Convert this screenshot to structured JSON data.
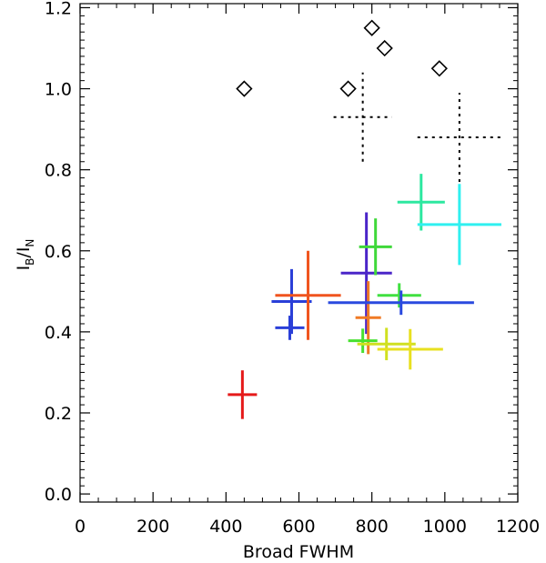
{
  "chart_data": {
    "type": "scatter",
    "xlabel": "Broad FWHM",
    "ylabel_main": "I",
    "ylabel_sub1": "B",
    "ylabel_slash": "/I",
    "ylabel_sub2": "N",
    "xlim": [
      0,
      1200
    ],
    "ylim": [
      -0.02,
      1.21
    ],
    "x_ticks": [
      0,
      200,
      400,
      600,
      800,
      1000,
      1200
    ],
    "x_tick_labels": [
      "0",
      "200",
      "400",
      "600",
      "800",
      "1000",
      "1200"
    ],
    "y_ticks": [
      0.0,
      0.2,
      0.4,
      0.6,
      0.8,
      1.0,
      1.2
    ],
    "y_tick_labels": [
      "0.0",
      "0.2",
      "0.4",
      "0.6",
      "0.8",
      "1.0",
      "1.2"
    ],
    "grid": false,
    "diamonds": [
      {
        "x": 450,
        "y": 1.0
      },
      {
        "x": 735,
        "y": 1.0
      },
      {
        "x": 800,
        "y": 1.15
      },
      {
        "x": 835,
        "y": 1.1
      },
      {
        "x": 985,
        "y": 1.05
      }
    ],
    "dotted_crosses": [
      {
        "x": 775,
        "xerr": 80,
        "y": 0.93,
        "yerr": 0.11,
        "color": "#000000"
      },
      {
        "x": 1040,
        "xerr": 115,
        "y": 0.88,
        "yerr": 0.11,
        "color": "#000000"
      }
    ],
    "error_crosses": [
      {
        "x": 445,
        "xerr": 40,
        "y": 0.245,
        "yerr": 0.06,
        "color": "#e51a1a"
      },
      {
        "x": 575,
        "xerr": 40,
        "y": 0.41,
        "yerr": 0.03,
        "color": "#2a3fd8"
      },
      {
        "x": 580,
        "xerr": 55,
        "y": 0.475,
        "yerr": 0.08,
        "color": "#2a3fd8"
      },
      {
        "x": 625,
        "xerr": 90,
        "y": 0.49,
        "yerr": 0.11,
        "color": "#f0541e"
      },
      {
        "x": 785,
        "xerr": 70,
        "y": 0.545,
        "yerr": 0.15,
        "color": "#4a25c8"
      },
      {
        "x": 790,
        "xerr": 35,
        "y": 0.435,
        "yerr": 0.09,
        "color": "#f07a25"
      },
      {
        "x": 810,
        "xerr": 45,
        "y": 0.61,
        "yerr": 0.07,
        "color": "#3fd83a"
      },
      {
        "x": 775,
        "xerr": 40,
        "y": 0.378,
        "yerr": 0.03,
        "color": "#48e030"
      },
      {
        "x": 875,
        "xerr": 60,
        "y": 0.49,
        "yerr": 0.03,
        "color": "#40e040"
      },
      {
        "x": 880,
        "xerr": 200,
        "y": 0.472,
        "yerr": 0.03,
        "color": "#2a4adf"
      },
      {
        "x": 840,
        "xerr": 80,
        "y": 0.37,
        "yerr": 0.04,
        "color": "#d0e020"
      },
      {
        "x": 905,
        "xerr": 90,
        "y": 0.357,
        "yerr": 0.05,
        "color": "#e8e020"
      },
      {
        "x": 935,
        "xerr": 65,
        "y": 0.72,
        "yerr": 0.07,
        "color": "#2de8a0"
      },
      {
        "x": 1040,
        "xerr": 115,
        "y": 0.665,
        "yerr": 0.1,
        "color": "#30f0f0"
      }
    ]
  }
}
